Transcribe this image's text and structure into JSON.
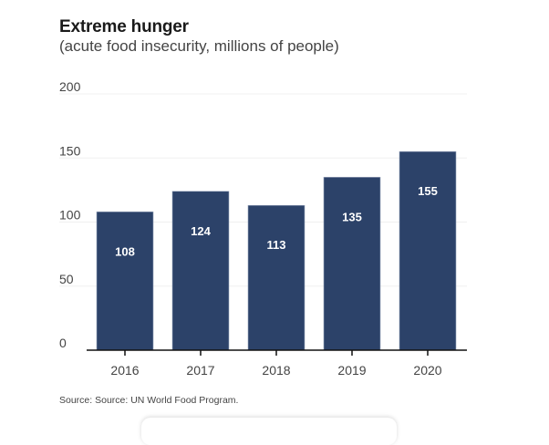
{
  "chart_data": {
    "type": "bar",
    "title": "Extreme hunger",
    "subtitle": "(acute food insecurity, millions of people)",
    "categories": [
      "2016",
      "2017",
      "2018",
      "2019",
      "2020"
    ],
    "values": [
      108,
      124,
      113,
      135,
      155
    ],
    "data_labels": [
      "108",
      "124",
      "113",
      "135",
      "155"
    ],
    "xlabel": "",
    "ylabel": "",
    "ylim": [
      0,
      200
    ],
    "yticks": [
      0,
      50,
      100,
      150,
      200
    ],
    "ytick_labels": [
      "0",
      "50",
      "100",
      "150",
      "200"
    ],
    "grid": true,
    "legend": "none",
    "bar_color": "#2c4269",
    "source": "Source: Source: UN World Food Program."
  }
}
